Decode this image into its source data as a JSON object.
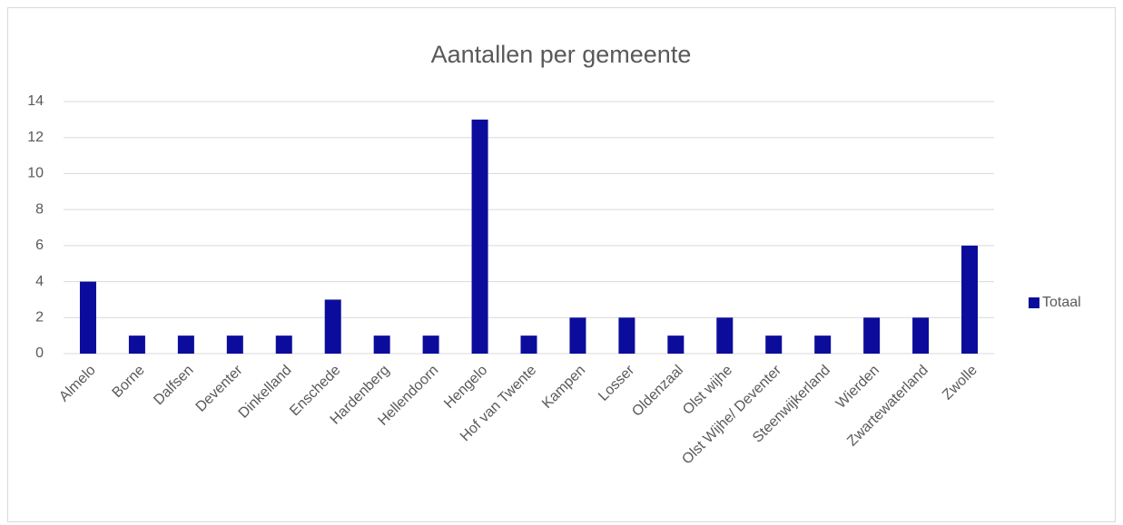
{
  "chart_data": {
    "type": "bar",
    "title": "Aantallen per gemeente",
    "categories": [
      "Almelo",
      "Borne",
      "Dalfsen",
      "Deventer",
      "Dinkelland",
      "Enschede",
      "Hardenberg",
      "Hellendoorn",
      "Hengelo",
      "Hof van Twente",
      "Kampen",
      "Losser",
      "Oldenzaal",
      "Olst wijhe",
      "Olst Wijhe/ Deventer",
      "Steenwijkerland",
      "Wierden",
      "Zwartewaterland",
      "Zwolle"
    ],
    "series": [
      {
        "name": "Totaal",
        "color": "#0c0c9c",
        "values": [
          4,
          1,
          1,
          1,
          1,
          3,
          1,
          1,
          13,
          1,
          2,
          2,
          1,
          2,
          1,
          1,
          2,
          2,
          6
        ]
      }
    ],
    "ylim": [
      0,
      14
    ],
    "yticks": [
      0,
      2,
      4,
      6,
      8,
      10,
      12,
      14
    ],
    "grid": true,
    "legend": "right"
  }
}
